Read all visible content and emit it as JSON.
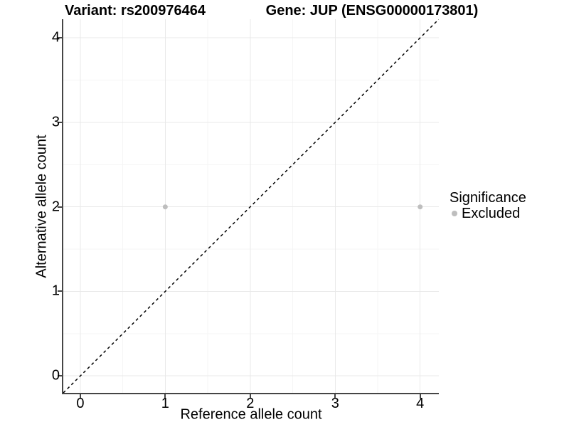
{
  "chart_data": {
    "type": "scatter",
    "titles": {
      "left": "Variant: rs200976464",
      "right": "Gene: JUP (ENSG00000173801)"
    },
    "xlabel": "Reference allele count",
    "ylabel": "Alternative allele count",
    "x_ticks": [
      0,
      1,
      2,
      3,
      4
    ],
    "y_ticks": [
      0,
      1,
      2,
      3,
      4
    ],
    "xlim": [
      -0.2,
      4.22
    ],
    "ylim": [
      -0.2,
      4.22
    ],
    "grid": {
      "major": true,
      "minor": true
    },
    "abline": {
      "slope": 1,
      "intercept": 0,
      "style": "dashed",
      "color": "#000000"
    },
    "points": [
      {
        "x": 1,
        "y": 2,
        "series": "Excluded"
      },
      {
        "x": 4,
        "y": 2,
        "series": "Excluded"
      }
    ],
    "point_radius": 3.5,
    "legend": {
      "title": "Significance",
      "position": "right",
      "entries": [
        {
          "label": "Excluded",
          "color": "#bebebe"
        }
      ]
    },
    "colors": {
      "point": "#bebebe",
      "grid_major": "#e9e9e9",
      "grid_minor": "#f5f5f5",
      "axis": "#454545",
      "abline": "#000000",
      "text": "#000000",
      "background": "#ffffff"
    }
  }
}
